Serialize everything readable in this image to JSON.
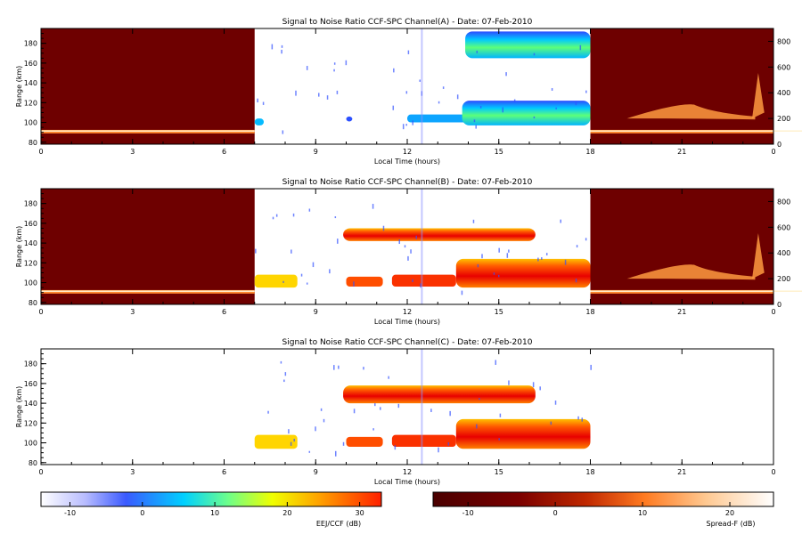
{
  "colors": {
    "ejj_scale": [
      "#ffffff",
      "#9aa0ff",
      "#2e4bff",
      "#00c8ff",
      "#7cff7c",
      "#ffff00",
      "#ffa000",
      "#ff3a00",
      "#e00000"
    ],
    "spreadf_scale": [
      "#5a0000",
      "#800000",
      "#b01a00",
      "#e05a10",
      "#ff9a40",
      "#ffd9a0",
      "#fffaf0"
    ]
  },
  "colorbars": [
    {
      "label": "EEJ/CCF (dB)",
      "ticks": [
        "-10",
        "0",
        "10",
        "20",
        "30"
      ],
      "range": [
        -14,
        33
      ],
      "tick_values": [
        -10,
        0,
        10,
        20,
        30
      ]
    },
    {
      "label": "Spread-F (dB)",
      "ticks": [
        "-10",
        "0",
        "10",
        "20"
      ],
      "range": [
        -14,
        25
      ],
      "tick_values": [
        -10,
        0,
        10,
        20
      ]
    }
  ],
  "chart_data": [
    {
      "type": "heatmap",
      "title": "Signal to Noise Ratio CCF-SPC Channel(A) - Date: 07-Feb-2010",
      "xlabel": "Local Time (hours)",
      "ylabel": "Range (km)",
      "xlim": [
        0,
        24
      ],
      "ylim": [
        78,
        195
      ],
      "x_ticks": [
        "0",
        "3",
        "6",
        "9",
        "12",
        "15",
        "18",
        "21",
        "0"
      ],
      "y_ticks": [
        "80",
        "100",
        "120",
        "140",
        "160",
        "180"
      ],
      "right_axis": {
        "ylim": [
          0,
          900
        ],
        "ticks": [
          "0",
          "200",
          "400",
          "600",
          "800"
        ]
      },
      "nighttime_spreadf": true,
      "echo_regions": [
        {
          "t_start": 7.0,
          "t_end": 7.3,
          "range_low": 97,
          "range_high": 104,
          "snr_db": 3
        },
        {
          "t_start": 10.0,
          "t_end": 10.2,
          "range_low": 101,
          "range_high": 106,
          "snr_db": -2
        },
        {
          "t_start": 12.0,
          "t_end": 14.0,
          "range_low": 100,
          "range_high": 108,
          "snr_db": 2
        },
        {
          "t_start": 13.8,
          "t_end": 18.0,
          "range_low": 97,
          "range_high": 122,
          "snr_db": 8
        },
        {
          "t_start": 13.9,
          "t_end": 18.0,
          "range_low": 165,
          "range_high": 192,
          "snr_db": -2
        }
      ]
    },
    {
      "type": "heatmap",
      "title": "Signal to Noise Ratio CCF-SPC Channel(B) - Date: 07-Feb-2010",
      "xlabel": "Local Time (hours)",
      "ylabel": "Range (km)",
      "xlim": [
        0,
        24
      ],
      "ylim": [
        78,
        195
      ],
      "x_ticks": [
        "0",
        "3",
        "6",
        "9",
        "12",
        "15",
        "18",
        "21",
        "0"
      ],
      "y_ticks": [
        "80",
        "100",
        "120",
        "140",
        "160",
        "180"
      ],
      "right_axis": {
        "ylim": [
          0,
          900
        ],
        "ticks": [
          "0",
          "200",
          "400",
          "600",
          "800"
        ]
      },
      "nighttime_spreadf": true,
      "echo_regions": [
        {
          "t_start": 7.0,
          "t_end": 8.4,
          "range_low": 95,
          "range_high": 108,
          "snr_db": 18
        },
        {
          "t_start": 10.0,
          "t_end": 11.2,
          "range_low": 96,
          "range_high": 106,
          "snr_db": 26
        },
        {
          "t_start": 11.5,
          "t_end": 13.6,
          "range_low": 96,
          "range_high": 108,
          "snr_db": 28
        },
        {
          "t_start": 13.6,
          "t_end": 18.0,
          "range_low": 95,
          "range_high": 124,
          "snr_db": 28
        },
        {
          "t_start": 9.9,
          "t_end": 16.2,
          "range_low": 142,
          "range_high": 155,
          "snr_db": 0
        }
      ]
    },
    {
      "type": "heatmap",
      "title": "Signal to Noise Ratio CCF-SPC Channel(C) - Date: 07-Feb-2010",
      "xlabel": "Local Time (hours)",
      "ylabel": "Range (km)",
      "xlim": [
        0,
        24
      ],
      "ylim": [
        78,
        195
      ],
      "x_ticks": [
        "0",
        "3",
        "6",
        "9",
        "12",
        "15",
        "18",
        "21",
        "0"
      ],
      "y_ticks": [
        "80",
        "100",
        "120",
        "140",
        "160",
        "180"
      ],
      "nighttime_spreadf": false,
      "echo_regions": [
        {
          "t_start": 7.0,
          "t_end": 8.4,
          "range_low": 94,
          "range_high": 108,
          "snr_db": 18
        },
        {
          "t_start": 10.0,
          "t_end": 11.2,
          "range_low": 96,
          "range_high": 106,
          "snr_db": 26
        },
        {
          "t_start": 11.5,
          "t_end": 13.6,
          "range_low": 96,
          "range_high": 108,
          "snr_db": 28
        },
        {
          "t_start": 13.6,
          "t_end": 18.0,
          "range_low": 94,
          "range_high": 124,
          "snr_db": 28
        },
        {
          "t_start": 9.9,
          "t_end": 16.2,
          "range_low": 140,
          "range_high": 158,
          "snr_db": 0
        }
      ]
    }
  ]
}
